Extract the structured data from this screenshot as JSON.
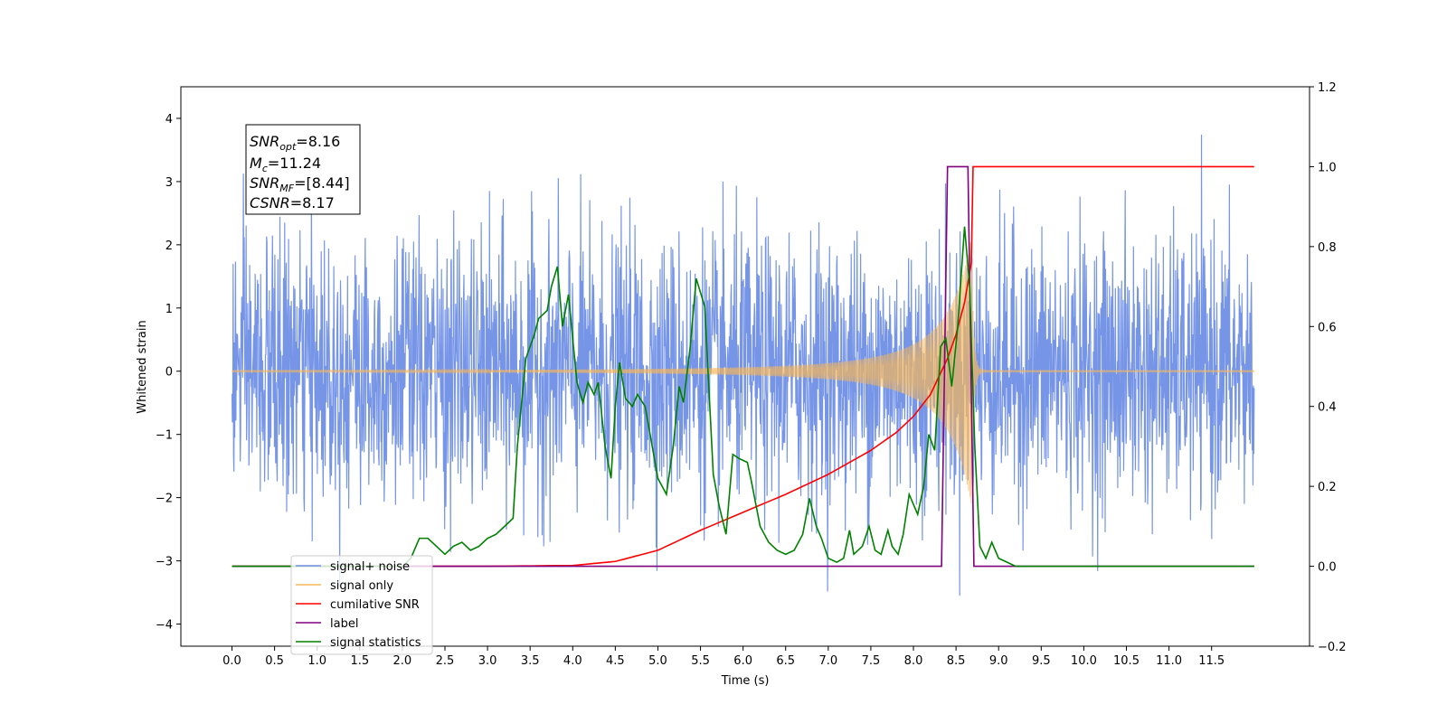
{
  "chart_data": {
    "type": "line",
    "title": "",
    "xlabel": "Time (s)",
    "ylabel": "Whitened strain",
    "xlim": [
      -0.6,
      12.65
    ],
    "ylim": [
      -4.35,
      4.5
    ],
    "y2lim": [
      -0.2,
      1.2
    ],
    "x_ticks": [
      "0.0",
      "0.5",
      "1.0",
      "1.5",
      "2.0",
      "2.5",
      "3.0",
      "3.5",
      "4.0",
      "4.5",
      "5.0",
      "5.5",
      "6.0",
      "6.5",
      "7.0",
      "7.5",
      "8.0",
      "8.5",
      "9.0",
      "9.5",
      "10.0",
      "10.5",
      "11.0",
      "11.5"
    ],
    "y_ticks": [
      "4",
      "3",
      "2",
      "1",
      "0",
      "−1",
      "−2",
      "−3",
      "−4"
    ],
    "y2_ticks": [
      "1.2",
      "1.0",
      "0.8",
      "0.6",
      "0.4",
      "0.2",
      "0.0",
      "−0.2"
    ],
    "grid": false,
    "legend_position": "lower-left",
    "annotation": {
      "snr_opt": "=8.16",
      "mc": "=11.24",
      "snr_mf": "=[8.44]",
      "csnr": "=8.17"
    },
    "series": [
      {
        "name": "signal+ noise",
        "axis": "left",
        "color": "#6f8fe6",
        "description_range": [
          -4.0,
          4.1
        ],
        "t_range": [
          0.0,
          12.0
        ]
      },
      {
        "name": "signal only",
        "axis": "left",
        "color": "#f5b75a",
        "chirp_peak_time": 8.68,
        "chirp_peak_amplitude": 2.1
      },
      {
        "name": "cumilative SNR",
        "axis": "right",
        "color": "#ff0000",
        "x": [
          0.0,
          3.0,
          4.0,
          4.5,
          5.0,
          5.5,
          6.0,
          6.5,
          7.0,
          7.5,
          7.8,
          8.0,
          8.2,
          8.4,
          8.5,
          8.6,
          8.68,
          8.7,
          12.0
        ],
        "y": [
          0.0,
          0.0,
          0.002,
          0.012,
          0.04,
          0.09,
          0.135,
          0.18,
          0.23,
          0.29,
          0.335,
          0.375,
          0.43,
          0.52,
          0.58,
          0.66,
          0.76,
          1.0,
          1.0
        ]
      },
      {
        "name": "label",
        "axis": "right",
        "color": "#800080",
        "x": [
          0.0,
          8.33,
          8.4,
          8.64,
          8.71,
          12.0
        ],
        "y": [
          0.0,
          0.0,
          1.0,
          1.0,
          0.0,
          0.0
        ]
      },
      {
        "name": "signal statistics",
        "axis": "right",
        "color": "#008000",
        "x": [
          0.0,
          0.5,
          1.0,
          1.5,
          2.0,
          2.1,
          2.2,
          2.3,
          2.4,
          2.5,
          2.6,
          2.7,
          2.8,
          2.9,
          3.0,
          3.1,
          3.2,
          3.3,
          3.35,
          3.45,
          3.55,
          3.6,
          3.7,
          3.75,
          3.82,
          3.88,
          3.95,
          4.05,
          4.12,
          4.18,
          4.25,
          4.3,
          4.38,
          4.45,
          4.5,
          4.55,
          4.62,
          4.7,
          4.76,
          4.85,
          4.9,
          5.0,
          5.1,
          5.18,
          5.25,
          5.3,
          5.38,
          5.45,
          5.55,
          5.65,
          5.72,
          5.8,
          5.88,
          5.95,
          6.05,
          6.1,
          6.2,
          6.3,
          6.4,
          6.5,
          6.6,
          6.7,
          6.78,
          6.86,
          6.92,
          7.0,
          7.1,
          7.18,
          7.25,
          7.3,
          7.4,
          7.48,
          7.55,
          7.62,
          7.7,
          7.75,
          7.82,
          7.88,
          7.95,
          8.05,
          8.12,
          8.18,
          8.25,
          8.32,
          8.38,
          8.45,
          8.52,
          8.6,
          8.66,
          8.72,
          8.78,
          8.85,
          8.92,
          9.0,
          9.1,
          9.2,
          12.0
        ],
        "y": [
          0.0,
          0.0,
          0.0,
          0.0,
          0.0,
          0.02,
          0.07,
          0.07,
          0.05,
          0.03,
          0.05,
          0.06,
          0.04,
          0.05,
          0.07,
          0.08,
          0.1,
          0.12,
          0.3,
          0.52,
          0.58,
          0.62,
          0.64,
          0.7,
          0.75,
          0.6,
          0.68,
          0.46,
          0.41,
          0.46,
          0.43,
          0.46,
          0.3,
          0.22,
          0.4,
          0.51,
          0.42,
          0.4,
          0.43,
          0.4,
          0.34,
          0.22,
          0.18,
          0.3,
          0.45,
          0.41,
          0.55,
          0.72,
          0.65,
          0.23,
          0.15,
          0.08,
          0.28,
          0.27,
          0.26,
          0.21,
          0.1,
          0.06,
          0.04,
          0.03,
          0.04,
          0.08,
          0.17,
          0.1,
          0.07,
          0.02,
          0.01,
          0.02,
          0.09,
          0.03,
          0.05,
          0.1,
          0.04,
          0.03,
          0.09,
          0.05,
          0.03,
          0.08,
          0.18,
          0.13,
          0.2,
          0.33,
          0.29,
          0.55,
          0.57,
          0.45,
          0.6,
          0.85,
          0.7,
          0.3,
          0.05,
          0.02,
          0.06,
          0.02,
          0.01,
          0.0,
          0.0
        ]
      }
    ]
  }
}
